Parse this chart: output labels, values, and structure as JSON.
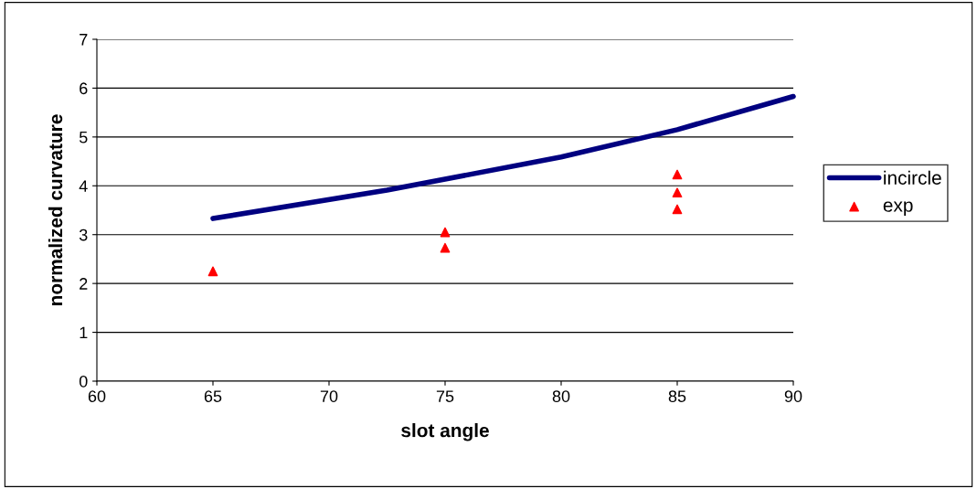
{
  "chart_data": {
    "type": "line",
    "xlabel": "slot angle",
    "ylabel": "normalized curvature",
    "xlim": [
      60,
      90
    ],
    "xticks": [
      60,
      65,
      70,
      75,
      80,
      85,
      90
    ],
    "ylim": [
      0,
      7
    ],
    "yticks": [
      0,
      1,
      2,
      3,
      4,
      5,
      6,
      7
    ],
    "grid": "y",
    "legend": "right",
    "series": [
      {
        "name": "incircle",
        "color": "#000080",
        "marker": "none",
        "x": [
          65,
          72.5,
          80,
          85,
          90
        ],
        "values": [
          3.33,
          3.91,
          4.59,
          5.15,
          5.83
        ]
      },
      {
        "name": "exp",
        "color": "#ff0000",
        "type": "scatter",
        "marker": "triangle",
        "x": [
          65,
          75,
          75,
          85,
          85,
          85
        ],
        "values": [
          2.25,
          3.05,
          2.73,
          4.23,
          3.86,
          3.52
        ]
      }
    ]
  }
}
